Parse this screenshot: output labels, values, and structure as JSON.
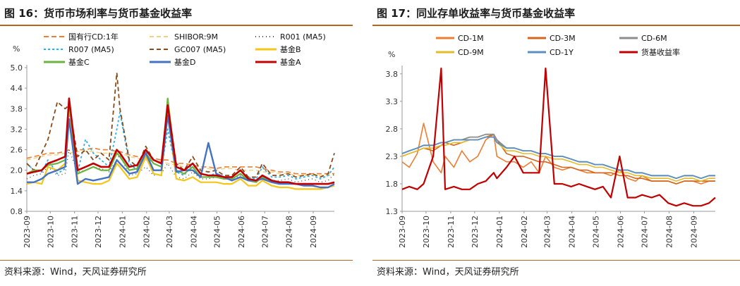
{
  "left": {
    "title": "图 16：货币市场利率与货币基金收益率",
    "source": "资料来源：Wind，天风证券研究所"
  },
  "right": {
    "title": "图 17：同业存单收益率与货币基金收益率",
    "source": "资料来源：Wind，天风证券研究所"
  },
  "chart_data": [
    {
      "type": "line",
      "ylabel": "%",
      "ylim": [
        0.8,
        5.0
      ],
      "yticks": [
        "5.0",
        "4.4",
        "3.8",
        "3.2",
        "2.6",
        "2.0",
        "1.4",
        "0.8"
      ],
      "xticks": [
        "2023-09",
        "2023-10",
        "2023-11",
        "2023-12",
        "2024-01",
        "2024-02",
        "2024-03",
        "2024-04",
        "2024-05",
        "2024-06",
        "2024-07",
        "2024-08",
        "2024-09"
      ],
      "legend_position": "top",
      "x": [
        "2023-09-01",
        "2023-09-10",
        "2023-09-20",
        "2023-09-28",
        "2023-10-10",
        "2023-10-20",
        "2023-10-25",
        "2023-11-05",
        "2023-11-15",
        "2023-11-25",
        "2023-12-05",
        "2023-12-15",
        "2023-12-25",
        "2023-12-29",
        "2024-01-10",
        "2024-01-20",
        "2024-01-31",
        "2024-02-10",
        "2024-02-20",
        "2024-02-28",
        "2024-03-10",
        "2024-03-20",
        "2024-03-31",
        "2024-04-10",
        "2024-04-20",
        "2024-04-30",
        "2024-05-10",
        "2024-05-20",
        "2024-05-31",
        "2024-06-10",
        "2024-06-20",
        "2024-06-28",
        "2024-07-10",
        "2024-07-20",
        "2024-07-31",
        "2024-08-10",
        "2024-08-20",
        "2024-08-31",
        "2024-09-10",
        "2024-09-20",
        "2024-09-28"
      ],
      "series": [
        {
          "name": "国有行CD:1年",
          "color": "#ed7d31",
          "dash": "7,4",
          "width": 1.6,
          "values": [
            2.35,
            2.4,
            2.45,
            2.5,
            2.5,
            2.55,
            2.6,
            2.6,
            2.6,
            2.65,
            2.6,
            2.6,
            2.55,
            2.55,
            2.45,
            2.4,
            2.35,
            2.35,
            2.3,
            2.3,
            2.2,
            2.2,
            2.15,
            2.1,
            2.1,
            2.05,
            2.1,
            2.1,
            2.1,
            2.1,
            2.1,
            2.05,
            2.0,
            1.95,
            1.95,
            1.9,
            1.9,
            1.9,
            1.9,
            1.9,
            1.9
          ]
        },
        {
          "name": "SHIBOR:9M",
          "color": "#f2d17c",
          "dash": "6,4",
          "width": 1.4,
          "values": [
            2.3,
            2.35,
            2.4,
            2.45,
            2.45,
            2.5,
            2.5,
            2.55,
            2.55,
            2.55,
            2.5,
            2.5,
            2.5,
            2.5,
            2.4,
            2.35,
            2.3,
            2.3,
            2.25,
            2.2,
            2.15,
            2.1,
            2.1,
            2.05,
            2.05,
            2.0,
            2.05,
            2.05,
            2.0,
            2.0,
            2.0,
            1.95,
            1.95,
            1.9,
            1.9,
            1.85,
            1.85,
            1.85,
            1.85,
            1.85,
            1.85
          ]
        },
        {
          "name": "R001 (MA5)",
          "color": "#4a4a4a",
          "dash": "1,4",
          "width": 1.4,
          "values": [
            1.75,
            1.85,
            1.9,
            2.1,
            1.85,
            1.9,
            2.6,
            1.95,
            2.0,
            2.1,
            2.05,
            1.95,
            2.3,
            2.45,
            1.85,
            1.9,
            2.1,
            1.85,
            1.9,
            2.2,
            1.8,
            1.75,
            1.95,
            1.75,
            1.75,
            1.8,
            1.75,
            1.75,
            1.85,
            1.7,
            1.7,
            1.85,
            1.7,
            1.7,
            1.75,
            1.65,
            1.7,
            1.75,
            1.65,
            1.7,
            1.9
          ]
        },
        {
          "name": "R007 (MA5)",
          "color": "#2eaee8",
          "dash": "3,3",
          "width": 1.8,
          "values": [
            2.2,
            2.0,
            1.95,
            2.3,
            1.9,
            2.05,
            3.6,
            1.95,
            2.9,
            2.5,
            2.3,
            2.1,
            3.2,
            3.7,
            2.2,
            2.0,
            2.6,
            2.0,
            2.0,
            3.2,
            1.95,
            1.85,
            2.2,
            1.9,
            1.85,
            1.9,
            1.8,
            1.8,
            2.0,
            1.8,
            1.75,
            2.1,
            1.8,
            1.8,
            1.85,
            1.75,
            1.8,
            1.85,
            1.75,
            1.85,
            2.1
          ]
        },
        {
          "name": "GC007 (MA5)",
          "color": "#8b4a1a",
          "dash": "6,4",
          "width": 1.8,
          "values": [
            2.2,
            2.0,
            2.5,
            2.9,
            4.0,
            3.8,
            3.9,
            2.4,
            2.6,
            2.3,
            2.5,
            2.3,
            4.85,
            3.8,
            2.3,
            2.1,
            2.7,
            2.3,
            2.2,
            3.9,
            2.2,
            2.0,
            2.4,
            2.0,
            1.95,
            2.0,
            1.85,
            1.85,
            2.1,
            1.8,
            1.8,
            2.2,
            1.85,
            1.85,
            1.9,
            1.8,
            1.85,
            1.9,
            1.8,
            1.9,
            2.5
          ]
        },
        {
          "name": "基金B",
          "color": "#f5c518",
          "dash": "",
          "width": 2.2,
          "values": [
            1.6,
            1.65,
            1.6,
            2.1,
            2.0,
            2.2,
            3.9,
            1.7,
            1.65,
            1.6,
            1.6,
            1.7,
            2.2,
            2.1,
            1.75,
            1.8,
            2.4,
            1.9,
            1.85,
            3.7,
            1.75,
            1.7,
            1.8,
            1.65,
            1.65,
            1.65,
            1.6,
            1.6,
            1.75,
            1.55,
            1.55,
            1.7,
            1.55,
            1.5,
            1.5,
            1.45,
            1.45,
            1.45,
            1.45,
            1.5,
            1.55
          ]
        },
        {
          "name": "基金C",
          "color": "#6db33f",
          "dash": "",
          "width": 2.2,
          "values": [
            1.9,
            2.0,
            2.0,
            2.15,
            2.2,
            2.3,
            4.0,
            1.9,
            2.0,
            2.1,
            2.0,
            2.0,
            2.5,
            2.4,
            2.0,
            2.05,
            2.5,
            2.2,
            2.1,
            4.1,
            2.0,
            1.9,
            2.1,
            1.8,
            1.8,
            1.8,
            1.75,
            1.75,
            1.9,
            1.7,
            1.65,
            1.8,
            1.65,
            1.65,
            1.65,
            1.6,
            1.6,
            1.6,
            1.6,
            1.6,
            1.65
          ]
        },
        {
          "name": "基金D",
          "color": "#4472c4",
          "dash": "",
          "width": 2.4,
          "values": [
            1.65,
            1.65,
            1.75,
            1.9,
            2.0,
            2.1,
            3.5,
            1.6,
            1.75,
            1.7,
            1.75,
            1.8,
            2.3,
            2.2,
            1.9,
            1.95,
            2.5,
            2.0,
            2.0,
            3.6,
            1.95,
            2.0,
            2.0,
            1.8,
            2.8,
            1.9,
            1.8,
            1.7,
            1.8,
            1.7,
            1.7,
            1.75,
            1.65,
            1.6,
            1.6,
            1.6,
            1.55,
            1.55,
            1.5,
            1.5,
            1.6
          ]
        },
        {
          "name": "基金A",
          "color": "#c00000",
          "dash": "",
          "width": 2.6,
          "values": [
            1.9,
            1.95,
            2.0,
            2.2,
            2.3,
            2.4,
            4.1,
            2.0,
            2.1,
            2.2,
            2.1,
            2.1,
            2.6,
            2.5,
            2.1,
            2.15,
            2.6,
            2.3,
            2.2,
            3.9,
            2.1,
            2.0,
            2.2,
            1.9,
            1.85,
            1.85,
            1.8,
            1.8,
            2.0,
            1.75,
            1.7,
            1.85,
            1.7,
            1.65,
            1.65,
            1.6,
            1.6,
            1.6,
            1.6,
            1.6,
            1.65
          ]
        }
      ]
    },
    {
      "type": "line",
      "ylabel": "%",
      "ylim": [
        1.3,
        3.9
      ],
      "yticks": [
        "3.8",
        "3.3",
        "2.8",
        "2.3",
        "1.8",
        "1.3"
      ],
      "xticks": [
        "2023-09",
        "2023-10",
        "2023-11",
        "2023-12",
        "2024-01",
        "2024-02",
        "2024-03",
        "2024-04",
        "2024-05",
        "2024-06",
        "2024-07",
        "2024-08",
        "2024-09"
      ],
      "legend_position": "top",
      "x": [
        "2023-09-01",
        "2023-09-10",
        "2023-09-20",
        "2023-09-28",
        "2023-10-10",
        "2023-10-20",
        "2023-10-25",
        "2023-11-05",
        "2023-11-15",
        "2023-11-25",
        "2023-12-05",
        "2023-12-15",
        "2023-12-25",
        "2023-12-29",
        "2024-01-10",
        "2024-01-20",
        "2024-01-31",
        "2024-02-10",
        "2024-02-20",
        "2024-02-28",
        "2024-03-10",
        "2024-03-20",
        "2024-03-31",
        "2024-04-10",
        "2024-04-20",
        "2024-04-30",
        "2024-05-10",
        "2024-05-20",
        "2024-05-31",
        "2024-06-10",
        "2024-06-20",
        "2024-06-28",
        "2024-07-10",
        "2024-07-20",
        "2024-07-31",
        "2024-08-10",
        "2024-08-20",
        "2024-08-31",
        "2024-09-10",
        "2024-09-20",
        "2024-09-28"
      ],
      "series": [
        {
          "name": "CD-1M",
          "color": "#ed7d31",
          "dash": "",
          "width": 1.6,
          "values": [
            2.2,
            2.1,
            2.35,
            2.9,
            2.2,
            2.0,
            2.3,
            2.1,
            2.4,
            2.2,
            2.3,
            2.6,
            2.7,
            2.3,
            2.2,
            2.2,
            2.1,
            2.2,
            2.0,
            2.3,
            2.1,
            2.05,
            2.1,
            2.05,
            2.0,
            2.0,
            2.0,
            1.95,
            2.05,
            1.9,
            1.85,
            1.95,
            1.85,
            1.85,
            1.85,
            1.8,
            1.85,
            1.85,
            1.8,
            1.85,
            1.85
          ]
        },
        {
          "name": "CD-3M",
          "color": "#d4651c",
          "dash": "",
          "width": 1.6,
          "values": [
            2.3,
            2.35,
            2.4,
            2.45,
            2.4,
            2.5,
            2.55,
            2.5,
            2.55,
            2.6,
            2.6,
            2.65,
            2.7,
            2.6,
            2.35,
            2.3,
            2.3,
            2.25,
            2.2,
            2.2,
            2.15,
            2.1,
            2.1,
            2.05,
            2.05,
            2.0,
            2.0,
            2.0,
            1.95,
            1.95,
            1.9,
            1.9,
            1.85,
            1.85,
            1.85,
            1.8,
            1.85,
            1.85,
            1.85,
            1.85,
            1.85
          ]
        },
        {
          "name": "CD-6M",
          "color": "#8d8d8d",
          "dash": "",
          "width": 1.8,
          "values": [
            2.35,
            2.4,
            2.45,
            2.5,
            2.5,
            2.55,
            2.55,
            2.6,
            2.6,
            2.65,
            2.65,
            2.7,
            2.7,
            2.6,
            2.45,
            2.45,
            2.4,
            2.4,
            2.35,
            2.35,
            2.3,
            2.3,
            2.25,
            2.2,
            2.2,
            2.15,
            2.15,
            2.1,
            2.05,
            2.05,
            2.0,
            2.0,
            1.95,
            1.95,
            1.95,
            1.9,
            1.95,
            1.95,
            1.9,
            1.95,
            1.95
          ]
        },
        {
          "name": "CD-9M",
          "color": "#e3bc2a",
          "dash": "",
          "width": 1.6,
          "values": [
            2.3,
            2.35,
            2.4,
            2.45,
            2.45,
            2.5,
            2.5,
            2.55,
            2.55,
            2.6,
            2.6,
            2.65,
            2.65,
            2.55,
            2.4,
            2.4,
            2.35,
            2.35,
            2.3,
            2.3,
            2.25,
            2.25,
            2.2,
            2.15,
            2.15,
            2.1,
            2.1,
            2.05,
            2.0,
            2.0,
            1.95,
            1.95,
            1.9,
            1.9,
            1.9,
            1.85,
            1.9,
            1.9,
            1.85,
            1.9,
            1.9
          ]
        },
        {
          "name": "CD-1Y",
          "color": "#5b8fc0",
          "dash": "",
          "width": 1.8,
          "values": [
            2.35,
            2.4,
            2.45,
            2.5,
            2.5,
            2.55,
            2.55,
            2.6,
            2.6,
            2.6,
            2.6,
            2.65,
            2.65,
            2.55,
            2.45,
            2.45,
            2.4,
            2.4,
            2.35,
            2.35,
            2.3,
            2.3,
            2.25,
            2.2,
            2.2,
            2.15,
            2.15,
            2.1,
            2.05,
            2.05,
            2.0,
            2.0,
            1.95,
            1.95,
            1.95,
            1.9,
            1.95,
            1.95,
            1.9,
            1.95,
            1.95
          ]
        },
        {
          "name": "货基收益率",
          "color": "#c00000",
          "dash": "",
          "width": 2.2,
          "values": [
            1.7,
            1.75,
            1.7,
            1.8,
            2.3,
            3.9,
            1.7,
            1.75,
            1.7,
            1.7,
            1.8,
            1.85,
            2.0,
            1.9,
            2.1,
            2.3,
            2.0,
            2.0,
            2.0,
            3.9,
            1.8,
            1.8,
            1.75,
            1.8,
            1.75,
            1.7,
            1.75,
            1.55,
            2.3,
            1.55,
            1.55,
            1.6,
            1.55,
            1.6,
            1.45,
            1.4,
            1.45,
            1.4,
            1.4,
            1.45,
            1.55
          ]
        }
      ]
    }
  ]
}
